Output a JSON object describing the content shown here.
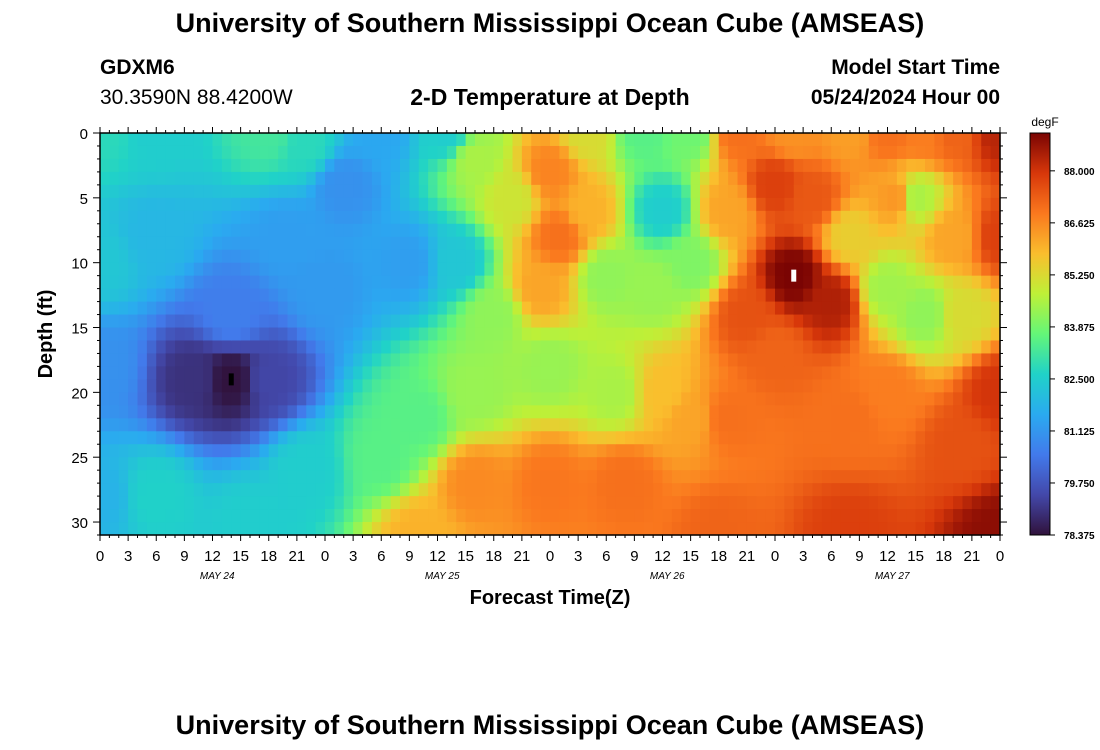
{
  "header": {
    "title": "University of Southern Mississippi Ocean Cube (AMSEAS)",
    "station_id": "GDXM6",
    "coords": "30.3590N  88.4200W",
    "plot_title": "2-D Temperature at Depth",
    "start_label": "Model Start Time",
    "start_value": "05/24/2024 Hour 00"
  },
  "footer": {
    "title": "University of Southern Mississippi Ocean Cube (AMSEAS)"
  },
  "chart_data": {
    "type": "heatmap",
    "xlabel": "Forecast Time(Z)",
    "ylabel": "Depth (ft)",
    "x_hours_range": [
      0,
      96
    ],
    "ylim": [
      0,
      31
    ],
    "x_tick_labels": [
      "0",
      "3",
      "6",
      "9",
      "12",
      "15",
      "18",
      "21",
      "0",
      "3",
      "6",
      "9",
      "12",
      "15",
      "18",
      "21",
      "0",
      "3",
      "6",
      "9",
      "12",
      "15",
      "18",
      "21",
      "0",
      "3",
      "6",
      "9",
      "12",
      "15",
      "18",
      "21",
      "0"
    ],
    "y_tick_labels": [
      "0",
      "5",
      "10",
      "15",
      "20",
      "25",
      "30"
    ],
    "day_labels": [
      "MAY 24",
      "MAY 25",
      "MAY 26",
      "MAY 27"
    ],
    "colorbar": {
      "unit": "degF",
      "min": 78.375,
      "max": 89.0,
      "tick_labels": [
        "88.000",
        "86.625",
        "85.250",
        "83.875",
        "82.500",
        "81.125",
        "79.750",
        "78.375"
      ]
    },
    "markers": [
      {
        "kind": "min",
        "x_hour": 14,
        "depth": 19
      },
      {
        "kind": "max",
        "x_hour": 74,
        "depth": 11
      }
    ],
    "anchors": [
      {
        "t": 0,
        "d": 0,
        "v": 82.8
      },
      {
        "t": 0,
        "d": 10,
        "v": 82.3
      },
      {
        "t": 0,
        "d": 18,
        "v": 81.0
      },
      {
        "t": 0,
        "d": 28,
        "v": 81.8
      },
      {
        "t": 6,
        "d": 0,
        "v": 82.5
      },
      {
        "t": 6,
        "d": 8,
        "v": 81.9
      },
      {
        "t": 6,
        "d": 28,
        "v": 82.6
      },
      {
        "t": 14,
        "d": 19,
        "v": 78.4
      },
      {
        "t": 10,
        "d": 19,
        "v": 79.0
      },
      {
        "t": 18,
        "d": 19,
        "v": 79.4
      },
      {
        "t": 14,
        "d": 14,
        "v": 80.6
      },
      {
        "t": 18,
        "d": 0,
        "v": 83.2
      },
      {
        "t": 22,
        "d": 1,
        "v": 82.8
      },
      {
        "t": 20,
        "d": 8,
        "v": 81.3
      },
      {
        "t": 24,
        "d": 12,
        "v": 81.2
      },
      {
        "t": 26,
        "d": 4,
        "v": 81.0
      },
      {
        "t": 30,
        "d": 0,
        "v": 81.5
      },
      {
        "t": 33,
        "d": 10,
        "v": 81.3
      },
      {
        "t": 34,
        "d": 22,
        "v": 83.5
      },
      {
        "t": 22,
        "d": 26,
        "v": 82.5
      },
      {
        "t": 16,
        "d": 30,
        "v": 82.5
      },
      {
        "t": 34,
        "d": 31,
        "v": 86.0
      },
      {
        "t": 30,
        "d": 25,
        "v": 83.5
      },
      {
        "t": 40,
        "d": 27,
        "v": 86.6
      },
      {
        "t": 37,
        "d": 0,
        "v": 82.5
      },
      {
        "t": 38,
        "d": 10,
        "v": 82.3
      },
      {
        "t": 40,
        "d": 2,
        "v": 84.5
      },
      {
        "t": 42,
        "d": 14,
        "v": 84.2
      },
      {
        "t": 40,
        "d": 20,
        "v": 84.3
      },
      {
        "t": 44,
        "d": 5,
        "v": 85.0
      },
      {
        "t": 48,
        "d": 3,
        "v": 86.7
      },
      {
        "t": 49,
        "d": 8,
        "v": 87.0
      },
      {
        "t": 47,
        "d": 12,
        "v": 86.2
      },
      {
        "t": 48,
        "d": 18,
        "v": 84.3
      },
      {
        "t": 48,
        "d": 27,
        "v": 86.9
      },
      {
        "t": 52,
        "d": 0,
        "v": 85.2
      },
      {
        "t": 52,
        "d": 6,
        "v": 86.0
      },
      {
        "t": 54,
        "d": 11,
        "v": 84.2
      },
      {
        "t": 55,
        "d": 20,
        "v": 84.5
      },
      {
        "t": 56,
        "d": 27,
        "v": 87.0
      },
      {
        "t": 58,
        "d": 0,
        "v": 83.5
      },
      {
        "t": 60,
        "d": 6,
        "v": 82.5
      },
      {
        "t": 59,
        "d": 12,
        "v": 84.3
      },
      {
        "t": 60,
        "d": 20,
        "v": 85.8
      },
      {
        "t": 63,
        "d": 0,
        "v": 83.8
      },
      {
        "t": 63,
        "d": 10,
        "v": 84.0
      },
      {
        "t": 63,
        "d": 22,
        "v": 86.2
      },
      {
        "t": 68,
        "d": 0,
        "v": 87.0
      },
      {
        "t": 67,
        "d": 6,
        "v": 86.2
      },
      {
        "t": 69,
        "d": 14,
        "v": 87.5
      },
      {
        "t": 67,
        "d": 22,
        "v": 87.0
      },
      {
        "t": 74,
        "d": 11,
        "v": 89.0
      },
      {
        "t": 72,
        "d": 4,
        "v": 87.8
      },
      {
        "t": 76,
        "d": 5,
        "v": 87.4
      },
      {
        "t": 78,
        "d": 13,
        "v": 88.4
      },
      {
        "t": 72,
        "d": 17,
        "v": 87.2
      },
      {
        "t": 74,
        "d": 0,
        "v": 86.5
      },
      {
        "t": 80,
        "d": 0,
        "v": 86.3
      },
      {
        "t": 80,
        "d": 8,
        "v": 85.5
      },
      {
        "t": 80,
        "d": 22,
        "v": 87.0
      },
      {
        "t": 84,
        "d": 12,
        "v": 84.4
      },
      {
        "t": 84,
        "d": 0,
        "v": 87.0
      },
      {
        "t": 85,
        "d": 5,
        "v": 86.4
      },
      {
        "t": 84,
        "d": 20,
        "v": 86.8
      },
      {
        "t": 87,
        "d": 5,
        "v": 84.5
      },
      {
        "t": 88,
        "d": 14,
        "v": 84.2
      },
      {
        "t": 88,
        "d": 0,
        "v": 86.8
      },
      {
        "t": 91,
        "d": 0,
        "v": 87.2
      },
      {
        "t": 91,
        "d": 8,
        "v": 86.2
      },
      {
        "t": 92,
        "d": 14,
        "v": 85.2
      },
      {
        "t": 92,
        "d": 24,
        "v": 87.5
      },
      {
        "t": 96,
        "d": 0,
        "v": 88.3
      },
      {
        "t": 96,
        "d": 8,
        "v": 87.8
      },
      {
        "t": 96,
        "d": 20,
        "v": 88.0
      },
      {
        "t": 96,
        "d": 31,
        "v": 88.8
      },
      {
        "t": 66,
        "d": 31,
        "v": 87.2
      },
      {
        "t": 80,
        "d": 31,
        "v": 87.8
      }
    ]
  }
}
